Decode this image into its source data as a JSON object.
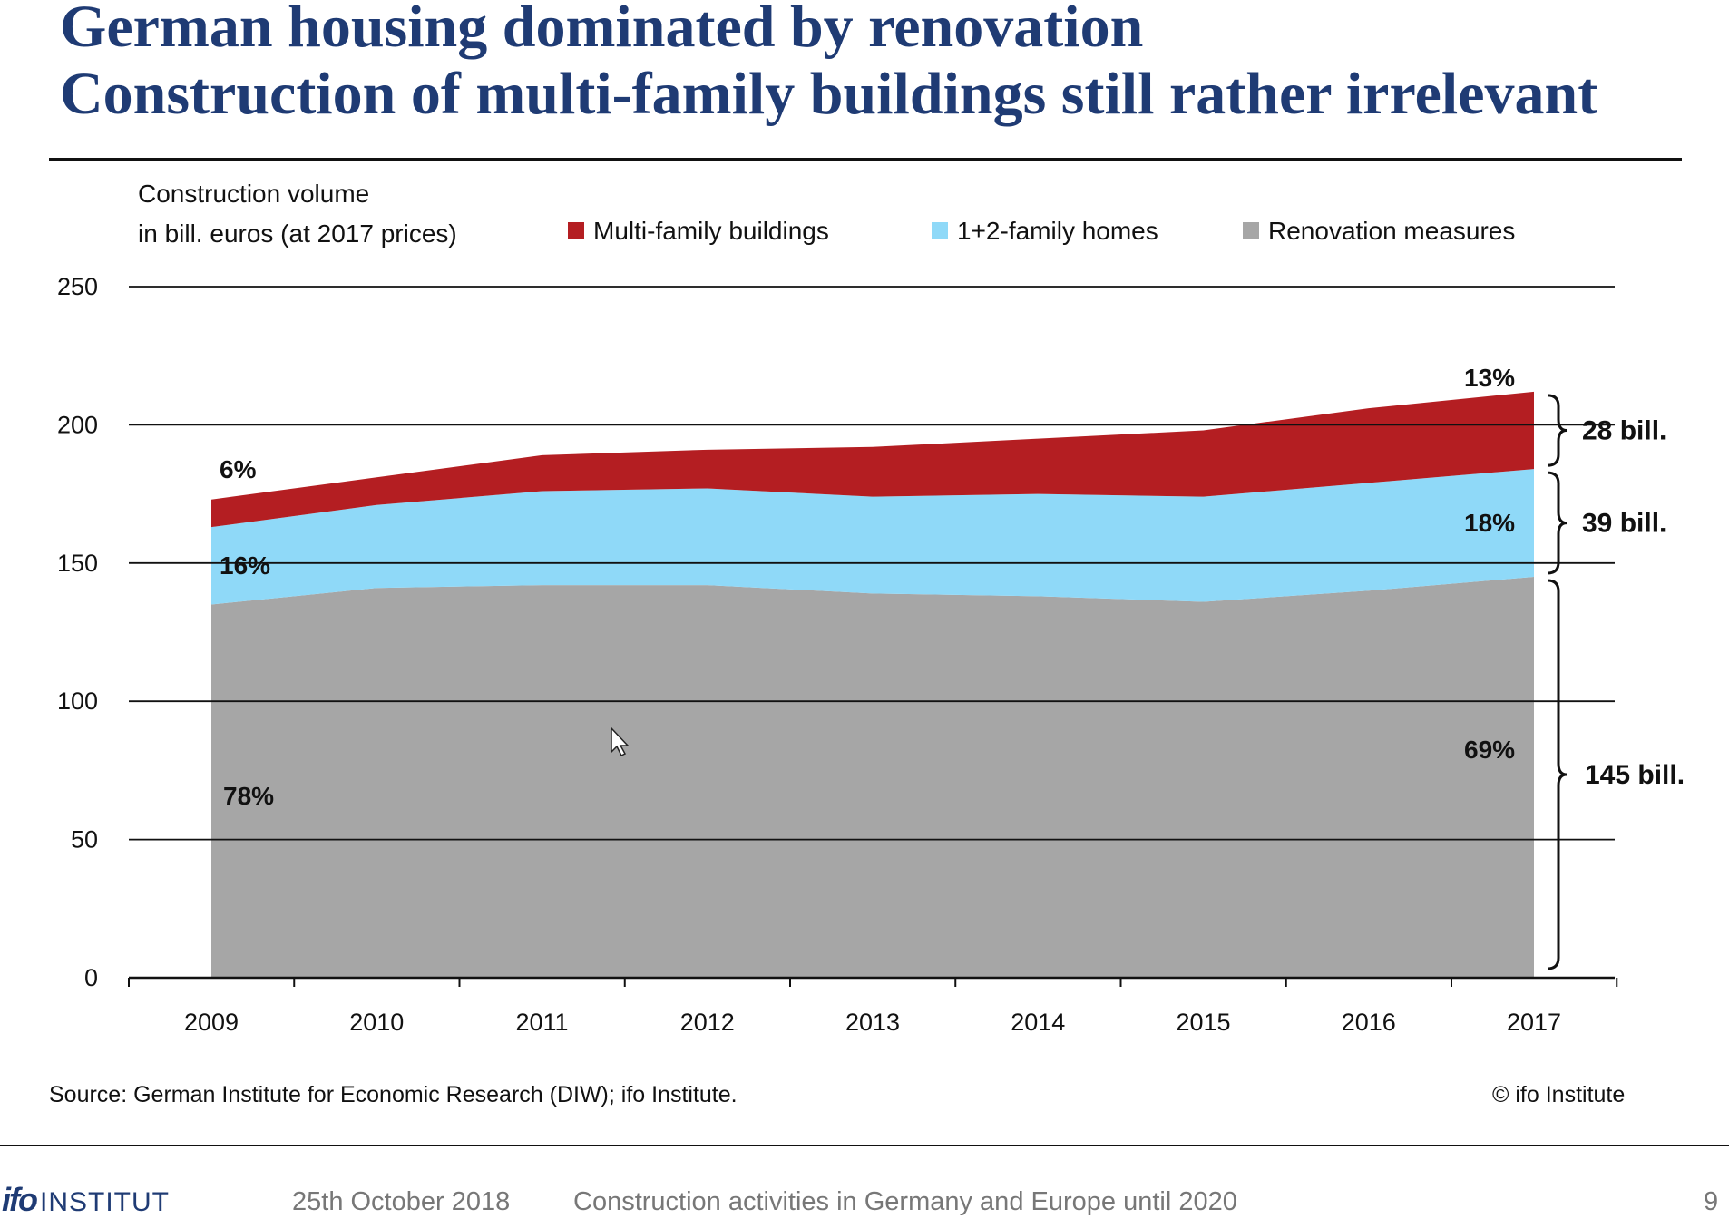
{
  "slide": {
    "title": "German housing dominated by renovation",
    "subtitle": "Construction of multi-family buildings still rather irrelevant"
  },
  "chart_data": {
    "type": "area",
    "stacked": true,
    "ylabel_lines": [
      "Construction volume",
      "in bill. euros (at 2017 prices)"
    ],
    "categories": [
      "2009",
      "2010",
      "2011",
      "2012",
      "2013",
      "2014",
      "2015",
      "2016",
      "2017"
    ],
    "y_ticks": [
      "0",
      "50",
      "100",
      "150",
      "200",
      "250"
    ],
    "ylim": [
      0,
      250
    ],
    "grid": true,
    "legend_position": "top",
    "series": [
      {
        "name": "Renovation measures",
        "color": "#a6a6a6",
        "values": [
          135,
          141,
          142,
          142,
          139,
          138,
          136,
          140,
          145
        ]
      },
      {
        "name": "1+2-family homes",
        "color": "#8fd9f8",
        "values": [
          28,
          30,
          34,
          35,
          35,
          37,
          38,
          39,
          39
        ]
      },
      {
        "name": "Multi-family buildings",
        "color": "#b41e22",
        "values": [
          10,
          10,
          13,
          14,
          18,
          20,
          24,
          27,
          28
        ]
      }
    ],
    "legend_order": [
      "Multi-family buildings",
      "1+2-family homes",
      "Renovation measures"
    ],
    "share_labels_2009": {
      "multi_family": "6%",
      "homes": "16%",
      "renovation": "78%"
    },
    "share_labels_2017": {
      "multi_family": "13%",
      "homes": "18%",
      "renovation": "69%"
    },
    "bracket_labels": {
      "multi_family": "28 bill.",
      "homes": "39 bill.",
      "renovation": "145 bill."
    }
  },
  "footer": {
    "source": "Source: German Institute for Economic Research (DIW); ifo Institute.",
    "copyright": "© ifo Institute",
    "logo_mark": "ifo",
    "logo_text": "INSTITUT",
    "date": "25th October 2018",
    "topic": "Construction activities in Germany and Europe until 2020",
    "page": "9"
  }
}
